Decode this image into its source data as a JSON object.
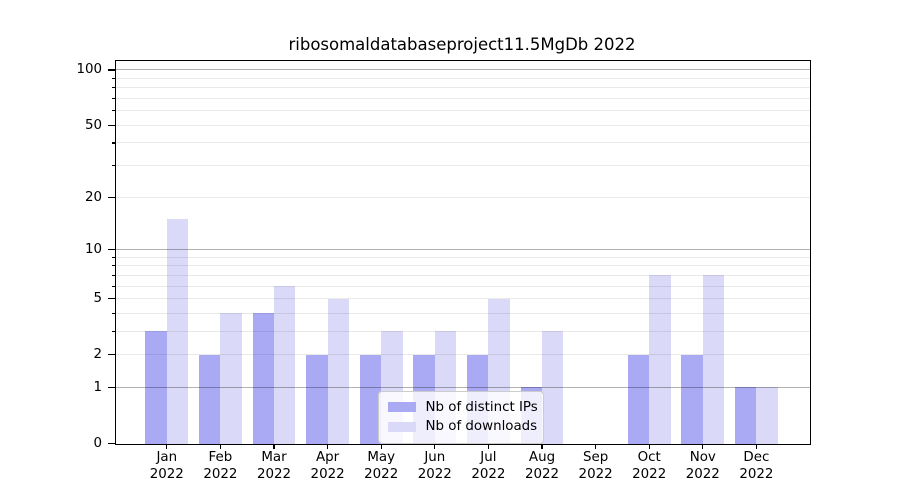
{
  "title": "ribosomaldatabaseproject11.5MgDb 2022",
  "chart_data": {
    "type": "bar",
    "x_year": "2022",
    "categories": [
      "Jan",
      "Feb",
      "Mar",
      "Apr",
      "May",
      "Jun",
      "Jul",
      "Aug",
      "Sep",
      "Oct",
      "Nov",
      "Dec"
    ],
    "series": [
      {
        "name": "Nb of distinct IPs",
        "color": "#aaaaf4",
        "values": [
          3,
          2,
          4,
          2,
          2,
          2,
          2,
          1,
          0,
          2,
          2,
          1
        ]
      },
      {
        "name": "Nb of downloads",
        "color": "#dadaf8",
        "values": [
          15,
          4,
          6,
          5,
          3,
          3,
          5,
          3,
          0,
          7,
          7,
          1
        ]
      }
    ],
    "yscale": "log10(1+value)",
    "ylim": [
      0,
      110
    ],
    "yticks": [
      0,
      1,
      2,
      5,
      10,
      20,
      50,
      100
    ],
    "minor_ticks": [
      3,
      4,
      6,
      7,
      8,
      9,
      30,
      40,
      60,
      70,
      80,
      90
    ],
    "major_gridlines": [
      1,
      10,
      100
    ],
    "minor_gridlines": [
      2,
      3,
      4,
      5,
      6,
      7,
      8,
      9,
      20,
      30,
      40,
      50,
      60,
      70,
      80,
      90
    ],
    "grid": true,
    "legend_position": "lower-center",
    "colors": {
      "background": "#ffffff",
      "grid_major": "#b0b0b0",
      "grid_minor": "#e9e9e9",
      "axis": "#000000"
    }
  }
}
